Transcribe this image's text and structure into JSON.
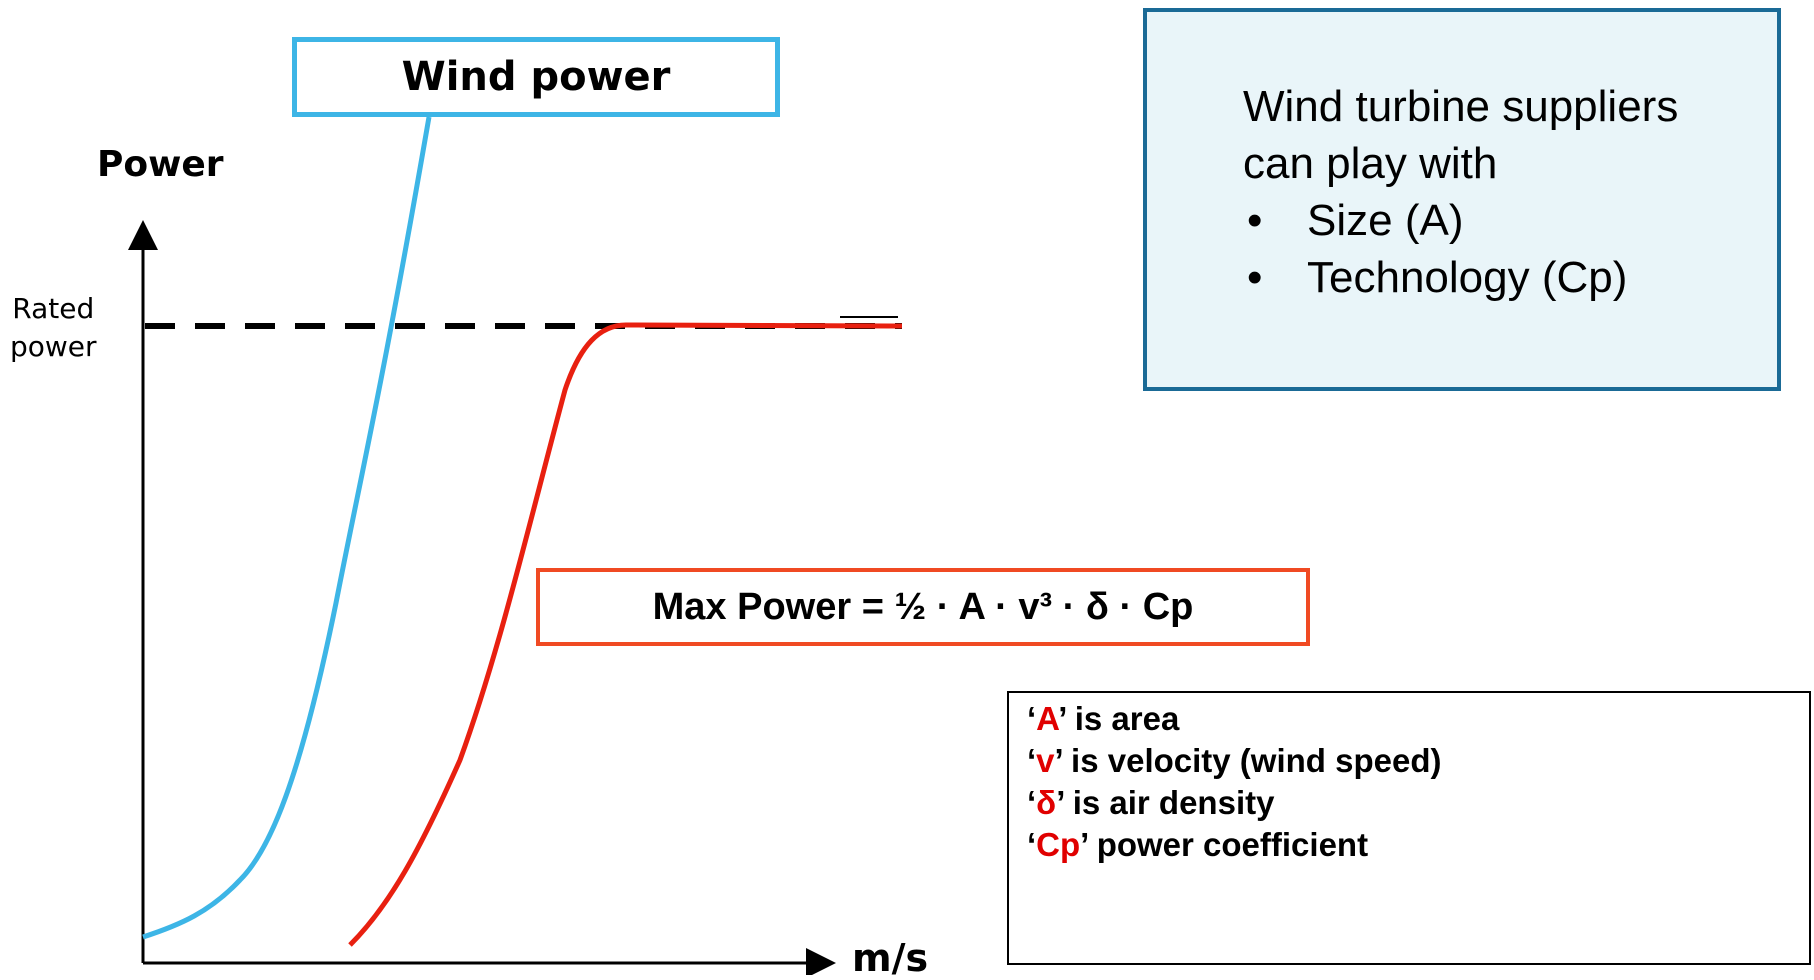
{
  "title": "Wind power",
  "y_axis_label": "Power",
  "x_axis_label": "m/s",
  "rated_label_lines": [
    "Rated",
    "power"
  ],
  "formula": "Max Power = ½ · A · v³ · δ · Cp",
  "info_box": {
    "intro_lines": [
      "Wind turbine suppliers",
      "can play with"
    ],
    "bullet": "•",
    "bullets": [
      "Size (A)",
      "Technology (Cp)"
    ]
  },
  "definitions": [
    {
      "open": "‘",
      "term": "A",
      "rest": "’ is area"
    },
    {
      "open": "‘",
      "term": "v",
      "rest": "’ is velocity (wind speed)"
    },
    {
      "open": "‘",
      "term": "δ",
      "rest": "’ is air density"
    },
    {
      "open": "‘",
      "term": "Cp",
      "rest": "’ power coefficient"
    }
  ]
}
